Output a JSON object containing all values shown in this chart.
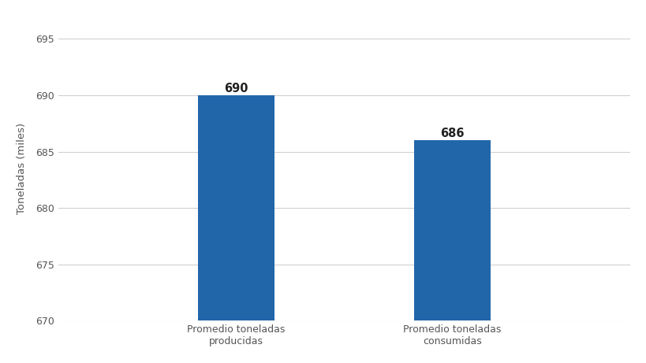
{
  "categories": [
    "Promedio toneladas\nproducidas",
    "Promedio toneladas\nconsumidas"
  ],
  "values": [
    690,
    686
  ],
  "bar_color": "#2266AA",
  "bar_width": 0.12,
  "ylabel": "Toneladas (miles)",
  "ylim": [
    670,
    697
  ],
  "yticks": [
    670,
    675,
    680,
    685,
    690,
    695
  ],
  "value_labels": [
    "690",
    "686"
  ],
  "value_fontsize": 10.5,
  "value_fontweight": "bold",
  "ylabel_fontsize": 9.5,
  "tick_fontsize": 9,
  "background_color": "#ffffff",
  "grid_color": "#d0d0d0",
  "bar_positions": [
    0.28,
    0.62
  ],
  "xlim": [
    0.0,
    0.9
  ]
}
